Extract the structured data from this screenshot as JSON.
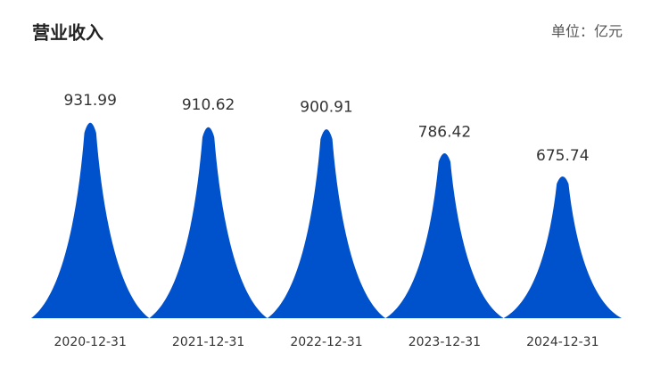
{
  "chart_data": {
    "type": "peak-bar",
    "title": "营业收入",
    "unit_label": "单位：亿元",
    "categories": [
      "2020-12-31",
      "2021-12-31",
      "2022-12-31",
      "2023-12-31",
      "2024-12-31"
    ],
    "values": [
      931.99,
      910.62,
      900.91,
      786.42,
      675.74
    ],
    "color": "#0052cc",
    "ylim": [
      0,
      1000
    ]
  }
}
